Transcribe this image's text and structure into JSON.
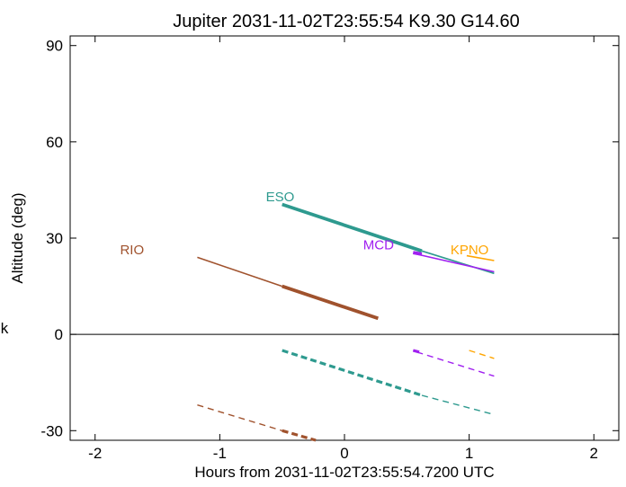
{
  "chart_data": {
    "type": "line",
    "title": "Jupiter 2031-11-02T23:55:54  K9.30  G14.60",
    "xlabel": "Hours from 2031-11-02T23:55:54.7200 UTC",
    "ylabel": "Altitude (deg)",
    "side_label": "k",
    "xlim": [
      -2.2,
      2.2
    ],
    "ylim": [
      -33,
      93
    ],
    "xticks": [
      -2,
      -1,
      0,
      1,
      2
    ],
    "xtick_labels": [
      "-2",
      "-1",
      "0",
      "1",
      "2"
    ],
    "yticks": [
      -30,
      0,
      30,
      60,
      90
    ],
    "ytick_labels": [
      "-30",
      "0",
      "30",
      "60",
      "90"
    ],
    "reference_line_y": 0,
    "series": [
      {
        "name": "RIO",
        "color": "#A0522D",
        "label_pos": [
          -1.8,
          25
        ],
        "altitude_thin": [
          [
            -1.18,
            24
          ],
          [
            -0.5,
            15
          ]
        ],
        "altitude_thick": [
          [
            -0.5,
            15
          ],
          [
            0.27,
            5
          ]
        ],
        "shadow_thin": [
          [
            -1.18,
            -22
          ],
          [
            -0.5,
            -30
          ]
        ],
        "shadow_thick": [
          [
            -0.5,
            -30
          ],
          [
            -0.23,
            -33
          ]
        ]
      },
      {
        "name": "ESO",
        "color": "#2E9A8F",
        "label_pos": [
          -0.63,
          41.5
        ],
        "altitude_thin": [
          [
            0.62,
            26
          ],
          [
            1.2,
            19
          ]
        ],
        "altitude_thick": [
          [
            -0.5,
            40.5
          ],
          [
            0.62,
            26
          ]
        ],
        "shadow_thin": [
          [
            0.62,
            -19
          ],
          [
            1.2,
            -25
          ]
        ],
        "shadow_thick": [
          [
            -0.5,
            -5
          ],
          [
            0.62,
            -19
          ]
        ]
      },
      {
        "name": "MCD",
        "color": "#A020F0",
        "label_pos": [
          0.15,
          26.5
        ],
        "altitude_thin": [
          [
            0.58,
            25
          ],
          [
            1.2,
            19.5
          ]
        ],
        "altitude_thick": [
          [
            0.55,
            25.5
          ],
          [
            0.62,
            25
          ]
        ],
        "shadow_thin": [
          [
            0.58,
            -5.5
          ],
          [
            1.2,
            -13
          ]
        ],
        "shadow_thick": [
          [
            0.55,
            -5
          ],
          [
            0.6,
            -5.5
          ]
        ]
      },
      {
        "name": "KPNO",
        "color": "#FFA500",
        "label_pos": [
          0.85,
          25
        ],
        "altitude_thin": [
          [
            0.98,
            24.5
          ],
          [
            1.2,
            23
          ]
        ],
        "altitude_thick": [],
        "shadow_thin": [
          [
            1.0,
            -5
          ],
          [
            1.2,
            -7.5
          ]
        ],
        "shadow_thick": []
      }
    ]
  }
}
